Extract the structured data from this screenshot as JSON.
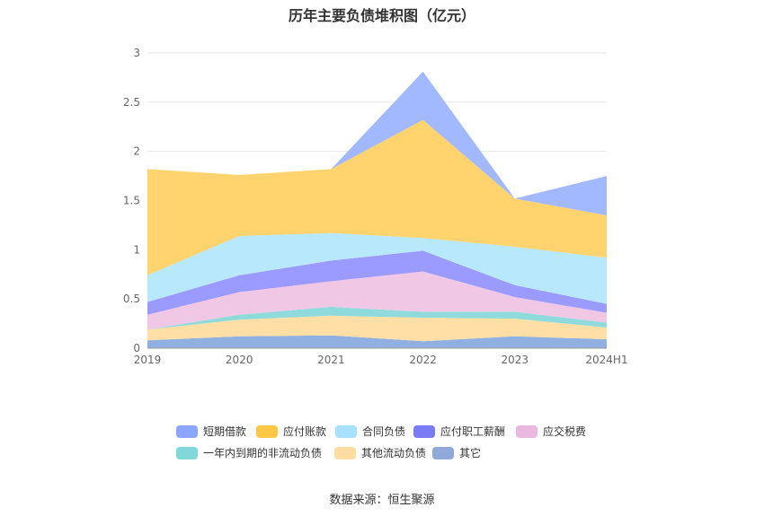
{
  "chart_data": {
    "type": "area",
    "stacked": true,
    "title": "历年主要负债堆积图（亿元）",
    "x": [
      "2019",
      "2020",
      "2021",
      "2022",
      "2023",
      "2024H1"
    ],
    "y_ticks": [
      "0",
      "0.5",
      "1",
      "1.5",
      "2",
      "2.5",
      "3"
    ],
    "ylim": [
      0,
      3
    ],
    "grid": true,
    "legend_position": "bottom",
    "series": [
      {
        "name": "其它",
        "color": "#8fb0e0",
        "values": [
          0.08,
          0.12,
          0.13,
          0.07,
          0.12,
          0.09
        ]
      },
      {
        "name": "其他流动负债",
        "color": "#ffdfa6",
        "values": [
          0.11,
          0.17,
          0.2,
          0.24,
          0.18,
          0.12
        ]
      },
      {
        "name": "一年内到期的非流动负债",
        "color": "#8fdbdb",
        "values": [
          0.0,
          0.05,
          0.09,
          0.06,
          0.07,
          0.05
        ]
      },
      {
        "name": "应交税费",
        "color": "#f0c8e6",
        "values": [
          0.15,
          0.23,
          0.26,
          0.41,
          0.15,
          0.1
        ]
      },
      {
        "name": "应付职工薪酬",
        "color": "#9a9aff",
        "values": [
          0.13,
          0.17,
          0.21,
          0.21,
          0.12,
          0.09
        ]
      },
      {
        "name": "合同负债",
        "color": "#b8e8fb",
        "values": [
          0.27,
          0.4,
          0.28,
          0.13,
          0.39,
          0.47
        ]
      },
      {
        "name": "应付账款",
        "color": "#ffd36e",
        "values": [
          1.08,
          0.62,
          0.65,
          1.2,
          0.49,
          0.43
        ]
      },
      {
        "name": "短期借款",
        "color": "#a2b9ff",
        "values": [
          0.0,
          0.0,
          0.0,
          0.49,
          0.0,
          0.4
        ]
      }
    ],
    "legend": [
      {
        "name": "短期借款",
        "color": "#8aa6ff"
      },
      {
        "name": "应付账款",
        "color": "#ffc844"
      },
      {
        "name": "合同负债",
        "color": "#a6e2fb"
      },
      {
        "name": "应付职工薪酬",
        "color": "#7b7bf5"
      },
      {
        "name": "应交税费",
        "color": "#ebb8e0"
      },
      {
        "name": "一年内到期的非流动负债",
        "color": "#80d8d8"
      },
      {
        "name": "其他流动负债",
        "color": "#ffdca0"
      },
      {
        "name": "其它",
        "color": "#8faad8"
      }
    ]
  },
  "source": "数据来源：恒生聚源"
}
